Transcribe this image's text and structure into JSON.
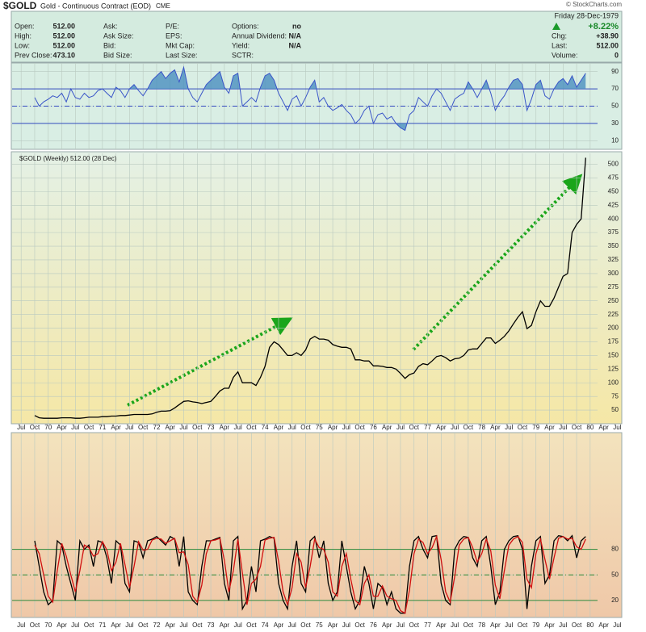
{
  "header": {
    "symbol": "$GOLD",
    "name": "Gold - Continuous Contract (EOD)",
    "exchange": "CME",
    "copyright": "© StockCharts.com",
    "date": "Friday  28-Dec-1979",
    "change_pct": "+8.22%",
    "columns": [
      [
        {
          "label": "Open:",
          "value": "512.00"
        },
        {
          "label": "High:",
          "value": "512.00"
        },
        {
          "label": "Low:",
          "value": "512.00"
        },
        {
          "label": "Prev Close:",
          "value": "473.10"
        }
      ],
      [
        {
          "label": "Ask:"
        },
        {
          "label": "Ask Size:"
        },
        {
          "label": "Bid:"
        },
        {
          "label": "Bid Size:"
        }
      ],
      [
        {
          "label": "P/E:"
        },
        {
          "label": "EPS:"
        },
        {
          "label": "Mkt Cap:"
        },
        {
          "label": "Last Size:"
        }
      ],
      [
        {
          "label": "Options:",
          "value": "no"
        },
        {
          "label": "Annual Dividend:",
          "value": "N/A"
        },
        {
          "label": "Yield:",
          "value": "N/A"
        },
        {
          "label": "SCTR:"
        }
      ]
    ],
    "right": [
      {
        "label": "Chg:",
        "value": "+38.90"
      },
      {
        "label": "Last:",
        "value": "512.00"
      },
      {
        "label": "Volume:",
        "value": "0"
      }
    ]
  },
  "chart_data": {
    "type": "stock",
    "xlim": [
      "1969-05",
      "1980-08"
    ],
    "x": [
      "1969-10",
      "1969-11",
      "1969-12",
      "1970-01",
      "1970-02",
      "1970-03",
      "1970-04",
      "1970-05",
      "1970-06",
      "1970-07",
      "1970-08",
      "1970-09",
      "1970-10",
      "1970-11",
      "1970-12",
      "1971-01",
      "1971-02",
      "1971-03",
      "1971-04",
      "1971-05",
      "1971-06",
      "1971-07",
      "1971-08",
      "1971-09",
      "1971-10",
      "1971-11",
      "1971-12",
      "1972-01",
      "1972-02",
      "1972-03",
      "1972-04",
      "1972-05",
      "1972-06",
      "1972-07",
      "1972-08",
      "1972-09",
      "1972-10",
      "1972-11",
      "1972-12",
      "1973-01",
      "1973-02",
      "1973-03",
      "1973-04",
      "1973-05",
      "1973-06",
      "1973-07",
      "1973-08",
      "1973-09",
      "1973-10",
      "1973-11",
      "1973-12",
      "1974-01",
      "1974-02",
      "1974-03",
      "1974-04",
      "1974-05",
      "1974-06",
      "1974-07",
      "1974-08",
      "1974-09",
      "1974-10",
      "1974-11",
      "1974-12",
      "1975-01",
      "1975-02",
      "1975-03",
      "1975-04",
      "1975-05",
      "1975-06",
      "1975-07",
      "1975-08",
      "1975-09",
      "1975-10",
      "1975-11",
      "1975-12",
      "1976-01",
      "1976-02",
      "1976-03",
      "1976-04",
      "1976-05",
      "1976-06",
      "1976-07",
      "1976-08",
      "1976-09",
      "1976-10",
      "1976-11",
      "1976-12",
      "1977-01",
      "1977-02",
      "1977-03",
      "1977-04",
      "1977-05",
      "1977-06",
      "1977-07",
      "1977-08",
      "1977-09",
      "1977-10",
      "1977-11",
      "1977-12",
      "1978-01",
      "1978-02",
      "1978-03",
      "1978-04",
      "1978-05",
      "1978-06",
      "1978-07",
      "1978-08",
      "1978-09",
      "1978-10",
      "1978-11",
      "1978-12",
      "1979-01",
      "1979-02",
      "1979-03",
      "1979-04",
      "1979-05",
      "1979-06",
      "1979-07",
      "1979-08",
      "1979-09",
      "1979-10",
      "1979-11",
      "1979-12"
    ],
    "xticks": [
      {
        "value": "1969-07",
        "label": "Jul"
      },
      {
        "value": "1969-10",
        "label": "Oct"
      },
      {
        "value": "1970-01",
        "label": "70"
      },
      {
        "value": "1970-04",
        "label": "Apr"
      },
      {
        "value": "1970-07",
        "label": "Jul"
      },
      {
        "value": "1970-10",
        "label": "Oct"
      },
      {
        "value": "1971-01",
        "label": "71"
      },
      {
        "value": "1971-04",
        "label": "Apr"
      },
      {
        "value": "1971-07",
        "label": "Jul"
      },
      {
        "value": "1971-10",
        "label": "Oct"
      },
      {
        "value": "1972-01",
        "label": "72"
      },
      {
        "value": "1972-04",
        "label": "Apr"
      },
      {
        "value": "1972-07",
        "label": "Jul"
      },
      {
        "value": "1972-10",
        "label": "Oct"
      },
      {
        "value": "1973-01",
        "label": "73"
      },
      {
        "value": "1973-04",
        "label": "Apr"
      },
      {
        "value": "1973-07",
        "label": "Jul"
      },
      {
        "value": "1973-10",
        "label": "Oct"
      },
      {
        "value": "1974-01",
        "label": "74"
      },
      {
        "value": "1974-04",
        "label": "Apr"
      },
      {
        "value": "1974-07",
        "label": "Jul"
      },
      {
        "value": "1974-10",
        "label": "Oct"
      },
      {
        "value": "1975-01",
        "label": "75"
      },
      {
        "value": "1975-04",
        "label": "Apr"
      },
      {
        "value": "1975-07",
        "label": "Jul"
      },
      {
        "value": "1975-10",
        "label": "Oct"
      },
      {
        "value": "1976-01",
        "label": "76"
      },
      {
        "value": "1976-04",
        "label": "Apr"
      },
      {
        "value": "1976-07",
        "label": "Jul"
      },
      {
        "value": "1976-10",
        "label": "Oct"
      },
      {
        "value": "1977-01",
        "label": "77"
      },
      {
        "value": "1977-04",
        "label": "Apr"
      },
      {
        "value": "1977-07",
        "label": "Jul"
      },
      {
        "value": "1977-10",
        "label": "Oct"
      },
      {
        "value": "1978-01",
        "label": "78"
      },
      {
        "value": "1978-04",
        "label": "Apr"
      },
      {
        "value": "1978-07",
        "label": "Jul"
      },
      {
        "value": "1978-10",
        "label": "Oct"
      },
      {
        "value": "1979-01",
        "label": "79"
      },
      {
        "value": "1979-04",
        "label": "Apr"
      },
      {
        "value": "1979-07",
        "label": "Jul"
      },
      {
        "value": "1979-10",
        "label": "Oct"
      },
      {
        "value": "1980-01",
        "label": "80"
      },
      {
        "value": "1980-04",
        "label": "Apr"
      },
      {
        "value": "1980-07",
        "label": "Jul"
      }
    ],
    "panels": [
      {
        "type": "line",
        "ylim": [
          0,
          100
        ],
        "yticks": [
          90,
          70,
          50,
          30,
          10
        ],
        "grid": true,
        "hlines": [
          {
            "value": 70,
            "color": "#3248c0",
            "style": "solid"
          },
          {
            "value": 50,
            "color": "#3248c0",
            "style": "dashdot"
          },
          {
            "value": 30,
            "color": "#3248c0",
            "style": "solid"
          }
        ],
        "fill": {
          "above": 70,
          "below": 30,
          "color": "#4a8fbf"
        },
        "series": [
          {
            "color": "#3a55c8",
            "values": [
              60,
              50,
              55,
              58,
              62,
              60,
              65,
              55,
              70,
              60,
              58,
              65,
              60,
              62,
              68,
              70,
              65,
              60,
              72,
              68,
              60,
              70,
              75,
              68,
              62,
              70,
              80,
              85,
              90,
              82,
              88,
              92,
              78,
              95,
              70,
              60,
              55,
              65,
              75,
              80,
              85,
              90,
              72,
              65,
              85,
              88,
              50,
              55,
              60,
              55,
              72,
              85,
              88,
              80,
              65,
              55,
              45,
              58,
              62,
              50,
              60,
              72,
              80,
              55,
              60,
              50,
              45,
              48,
              52,
              45,
              40,
              30,
              35,
              45,
              50,
              30,
              40,
              42,
              35,
              38,
              30,
              25,
              22,
              40,
              45,
              60,
              55,
              50,
              62,
              70,
              65,
              55,
              45,
              58,
              62,
              65,
              78,
              70,
              60,
              70,
              80,
              65,
              45,
              55,
              62,
              72,
              80,
              82,
              75,
              45,
              58,
              75,
              80,
              62,
              58,
              70,
              78,
              82,
              75,
              85,
              72,
              80,
              88
            ]
          }
        ]
      },
      {
        "type": "line",
        "label": "$GOLD (Weekly) 512.00 (28 Dec)",
        "ylim": [
          25,
          520
        ],
        "yticks": [
          500,
          475,
          450,
          425,
          400,
          375,
          350,
          325,
          300,
          275,
          250,
          225,
          200,
          175,
          150,
          125,
          100,
          75,
          50
        ],
        "grid": true,
        "series": [
          {
            "color": "#000000",
            "values": [
              40,
              36,
              35,
              35,
              35,
              35,
              36,
              36,
              36,
              35,
              35,
              36,
              37,
              37,
              37,
              38,
              38,
              39,
              39,
              40,
              40,
              41,
              42,
              42,
              42,
              42,
              43,
              46,
              48,
              48,
              49,
              54,
              60,
              66,
              67,
              65,
              64,
              62,
              64,
              66,
              75,
              85,
              90,
              90,
              110,
              120,
              100,
              100,
              100,
              95,
              110,
              130,
              165,
              175,
              170,
              160,
              150,
              150,
              155,
              150,
              160,
              180,
              185,
              180,
              180,
              178,
              170,
              167,
              165,
              165,
              162,
              142,
              142,
              140,
              140,
              131,
              131,
              130,
              128,
              128,
              125,
              117,
              108,
              115,
              118,
              130,
              135,
              133,
              140,
              148,
              150,
              146,
              140,
              144,
              145,
              150,
              160,
              162,
              162,
              172,
              182,
              182,
              172,
              178,
              185,
              195,
              208,
              220,
              230,
              199,
              205,
              230,
              250,
              240,
              240,
              255,
              275,
              295,
              300,
              375,
              390,
              400,
              512
            ]
          }
        ]
      },
      {
        "type": "line",
        "ylim": [
          0,
          217
        ],
        "yticks": [
          80,
          50,
          20
        ],
        "grid": true,
        "hlines": [
          {
            "value": 80,
            "color": "#2e8a3a",
            "style": "solid"
          },
          {
            "value": 50,
            "color": "#2e8a3a",
            "style": "dashdot"
          },
          {
            "value": 20,
            "color": "#2e8a3a",
            "style": "solid"
          }
        ],
        "series": [
          {
            "color": "#000000",
            "values": [
              90,
              60,
              30,
              15,
              20,
              90,
              85,
              60,
              40,
              20,
              90,
              80,
              85,
              60,
              90,
              88,
              70,
              40,
              90,
              85,
              40,
              30,
              90,
              88,
              70,
              90,
              92,
              95,
              90,
              85,
              95,
              92,
              60,
              95,
              30,
              20,
              15,
              60,
              90,
              90,
              92,
              94,
              40,
              20,
              90,
              95,
              10,
              20,
              60,
              30,
              90,
              92,
              95,
              93,
              40,
              20,
              10,
              60,
              90,
              40,
              30,
              90,
              95,
              70,
              90,
              40,
              20,
              30,
              90,
              60,
              30,
              10,
              20,
              60,
              40,
              10,
              40,
              35,
              15,
              30,
              10,
              5,
              5,
              60,
              90,
              95,
              80,
              70,
              95,
              96,
              40,
              20,
              15,
              80,
              90,
              95,
              94,
              70,
              60,
              90,
              95,
              60,
              15,
              30,
              80,
              90,
              95,
              96,
              80,
              10,
              60,
              90,
              95,
              40,
              50,
              90,
              96,
              95,
              90,
              96,
              70,
              90,
              95
            ]
          },
          {
            "color": "#d01010",
            "values": [
              85,
              75,
              50,
              25,
              18,
              55,
              87,
              72,
              50,
              30,
              55,
              85,
              82,
              72,
              75,
              89,
              79,
              55,
              65,
              87,
              62,
              35,
              60,
              89,
              79,
              80,
              91,
              93,
              92,
              87,
              90,
              93,
              76,
              77,
              62,
              25,
              18,
              38,
              75,
              90,
              91,
              93,
              67,
              30,
              55,
              92,
              52,
              15,
              40,
              45,
              60,
              91,
              93,
              94,
              66,
              30,
              15,
              35,
              75,
              65,
              35,
              60,
              92,
              82,
              80,
              65,
              30,
              25,
              60,
              75,
              45,
              20,
              15,
              40,
              50,
              25,
              25,
              37,
              25,
              22,
              20,
              8,
              5,
              32,
              75,
              92,
              88,
              75,
              82,
              95,
              68,
              30,
              18,
              48,
              85,
              92,
              94,
              82,
              65,
              75,
              92,
              78,
              38,
              22,
              55,
              85,
              92,
              95,
              88,
              45,
              35,
              75,
              92,
              68,
              45,
              70,
              93,
              95,
              92,
              93,
              83,
              80,
              92
            ]
          }
        ]
      }
    ]
  }
}
